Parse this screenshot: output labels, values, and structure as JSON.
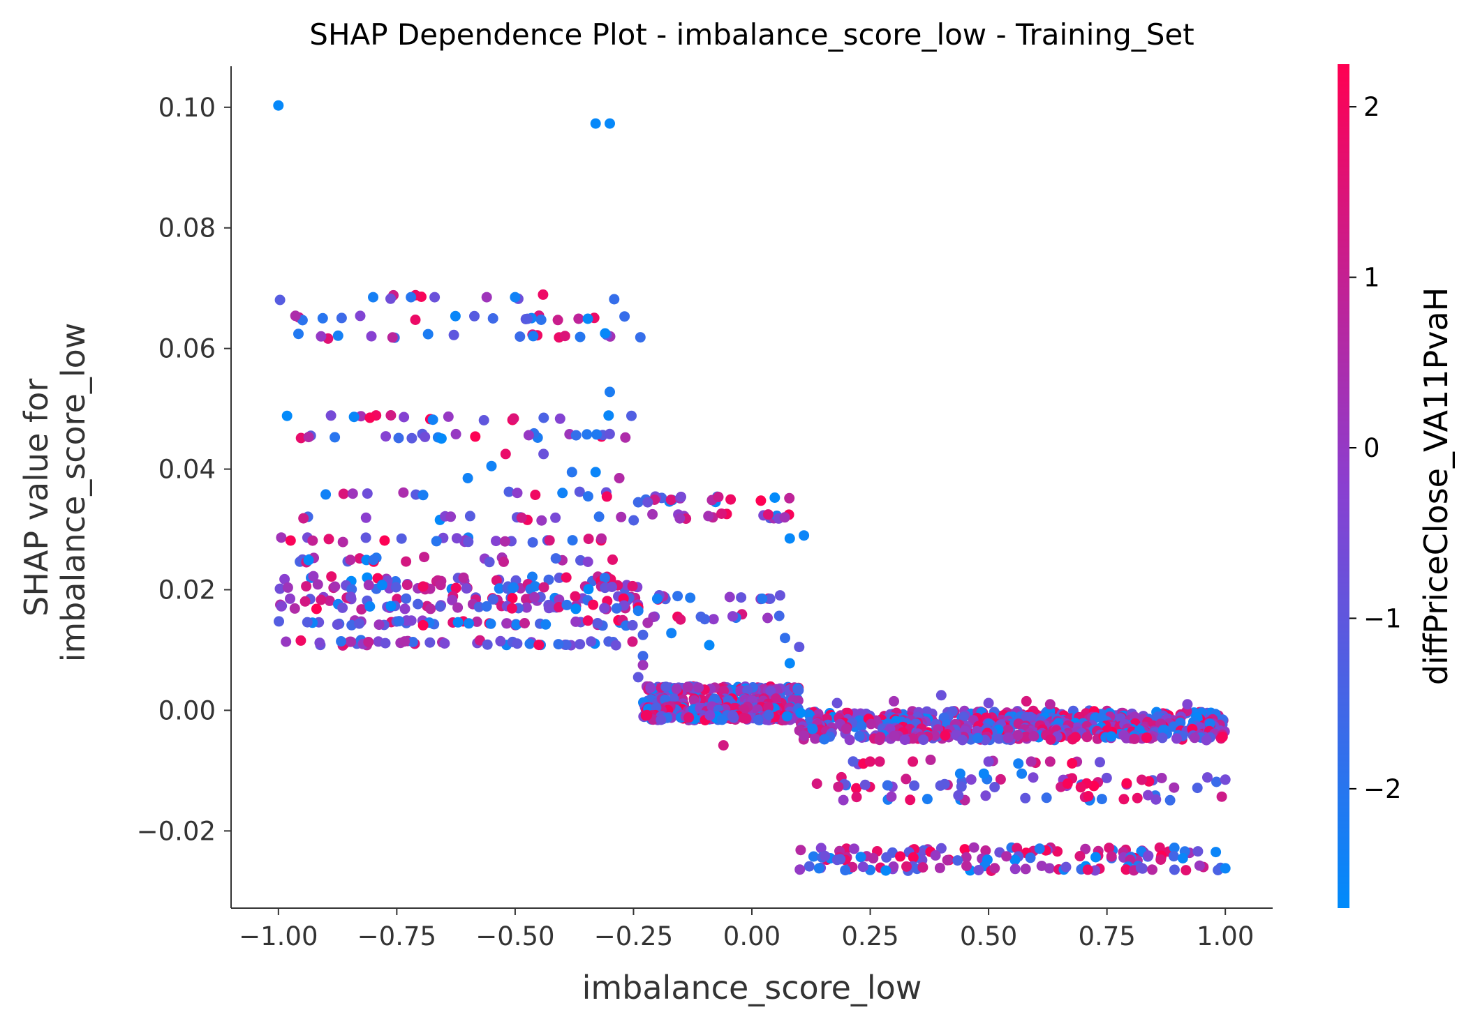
{
  "chart_data": {
    "type": "scatter",
    "title": "SHAP Dependence Plot - imbalance_score_low - Training_Set",
    "xlabel": "imbalance_score_low",
    "ylabel_lines": [
      "SHAP value for",
      "imbalance_score_low"
    ],
    "xlim": [
      -1.1,
      1.1
    ],
    "ylim": [
      -0.0328,
      0.1068
    ],
    "x_ticks": [
      -1.0,
      -0.75,
      -0.5,
      -0.25,
      0.0,
      0.25,
      0.5,
      0.75,
      1.0
    ],
    "x_tick_labels": [
      "−1.00",
      "−0.75",
      "−0.50",
      "−0.25",
      "0.00",
      "0.25",
      "0.50",
      "0.75",
      "1.00"
    ],
    "y_ticks": [
      -0.02,
      0.0,
      0.02,
      0.04,
      0.06,
      0.08,
      0.1
    ],
    "y_tick_labels": [
      "−0.02",
      "0.00",
      "0.02",
      "0.04",
      "0.06",
      "0.08",
      "0.10"
    ],
    "grid": false,
    "colorbar": {
      "label": "diffPriceClose_VA11PvaH",
      "range": [
        -2.7,
        2.25
      ],
      "ticks": [
        -2,
        -1,
        0,
        1,
        2
      ],
      "tick_labels": [
        "−2",
        "−1",
        "0",
        "1",
        "2"
      ],
      "color_low": "#008bfb",
      "color_mid": "#8a3fd0",
      "color_high": "#ff0052"
    },
    "bands": [
      {
        "x_range": [
          -1.0,
          -0.235
        ],
        "y_values": [
          0.0685,
          0.0651,
          0.062,
          0.0485,
          0.0455,
          0.0358,
          0.0318,
          0.0282,
          0.025,
          0.0218,
          0.0205,
          0.0185,
          0.0172,
          0.0145,
          0.0112
        ],
        "density": [
          8,
          20,
          18,
          18,
          24,
          14,
          16,
          26,
          26,
          30,
          46,
          40,
          46,
          48,
          46
        ]
      },
      {
        "x_range": [
          -0.23,
          0.1
        ],
        "y_values": [
          0.035,
          0.0322,
          0.0188,
          0.0155,
          0.0035,
          0.0015,
          0.0002,
          -0.0012
        ],
        "density": [
          18,
          16,
          14,
          12,
          110,
          100,
          110,
          100
        ]
      },
      {
        "x_range": [
          0.1,
          1.0
        ],
        "y_values": [
          -0.0005,
          -0.0015,
          -0.0025,
          -0.0035,
          -0.0045,
          -0.0085,
          -0.0115,
          -0.0125,
          -0.0145,
          -0.0232,
          -0.0245,
          -0.0262
        ],
        "density": [
          120,
          130,
          130,
          130,
          120,
          10,
          18,
          26,
          24,
          46,
          46,
          50
        ]
      }
    ],
    "points": [
      {
        "x": -1.0,
        "y": 0.1003,
        "c": -2.6
      },
      {
        "x": -0.33,
        "y": 0.0973,
        "c": -2.6
      },
      {
        "x": -0.3,
        "y": 0.0973,
        "c": -2.6
      },
      {
        "x": -0.3,
        "y": 0.0528,
        "c": -2.2
      },
      {
        "x": -0.31,
        "y": 0.0625,
        "c": -2.6
      },
      {
        "x": -0.8,
        "y": 0.0685,
        "c": -2.3
      },
      {
        "x": -0.72,
        "y": 0.0685,
        "c": -2.0
      },
      {
        "x": -0.67,
        "y": 0.0685,
        "c": -0.8
      },
      {
        "x": -0.5,
        "y": 0.0685,
        "c": -2.4
      },
      {
        "x": -0.56,
        "y": 0.0685,
        "c": 0.2
      },
      {
        "x": -0.91,
        "y": 0.062,
        "c": 0.0
      },
      {
        "x": -0.52,
        "y": 0.0425,
        "c": 1.8
      },
      {
        "x": -0.38,
        "y": 0.0395,
        "c": -2.0
      },
      {
        "x": -0.33,
        "y": 0.0395,
        "c": -2.5
      },
      {
        "x": -0.28,
        "y": 0.0385,
        "c": 0.6
      },
      {
        "x": -0.9,
        "y": 0.0358,
        "c": -2.4
      },
      {
        "x": -0.6,
        "y": 0.0385,
        "c": -2.4
      },
      {
        "x": -0.55,
        "y": 0.0405,
        "c": -2.4
      },
      {
        "x": -0.44,
        "y": 0.0425,
        "c": -0.8
      },
      {
        "x": -0.24,
        "y": 0.0345,
        "c": -1.6
      },
      {
        "x": -0.22,
        "y": 0.0345,
        "c": -0.8
      },
      {
        "x": -0.21,
        "y": 0.0325,
        "c": 0.3
      },
      {
        "x": -0.2,
        "y": 0.0185,
        "c": -2.4
      },
      {
        "x": -0.17,
        "y": 0.0128,
        "c": -2.4
      },
      {
        "x": -0.09,
        "y": 0.0108,
        "c": -2.6
      },
      {
        "x": -0.23,
        "y": 0.009,
        "c": -1.6
      },
      {
        "x": -0.23,
        "y": 0.0075,
        "c": 0.2
      },
      {
        "x": -0.24,
        "y": 0.0055,
        "c": -1.0
      },
      {
        "x": -0.23,
        "y": 0.0125,
        "c": -1.4
      },
      {
        "x": -0.24,
        "y": 0.0165,
        "c": -2.2
      },
      {
        "x": -0.22,
        "y": 0.0145,
        "c": 0.4
      },
      {
        "x": -0.06,
        "y": -0.0058,
        "c": 1.3
      },
      {
        "x": 0.08,
        "y": 0.0285,
        "c": -2.6
      },
      {
        "x": 0.11,
        "y": 0.029,
        "c": -2.5
      },
      {
        "x": 0.08,
        "y": 0.0078,
        "c": -2.6
      },
      {
        "x": 0.07,
        "y": 0.012,
        "c": -1.8
      },
      {
        "x": 0.1,
        "y": 0.0105,
        "c": -1.0
      },
      {
        "x": 0.18,
        "y": 0.0012,
        "c": -0.8
      },
      {
        "x": 0.4,
        "y": 0.0025,
        "c": -0.8
      },
      {
        "x": 0.3,
        "y": 0.0015,
        "c": 0.3
      },
      {
        "x": 0.5,
        "y": 0.0012,
        "c": -0.6
      },
      {
        "x": 0.58,
        "y": 0.0015,
        "c": 1.4
      },
      {
        "x": 0.92,
        "y": 0.001,
        "c": -0.4
      },
      {
        "x": 0.63,
        "y": 0.001,
        "c": 0.7
      },
      {
        "x": 0.25,
        "y": -0.0085,
        "c": 1.7
      },
      {
        "x": 0.27,
        "y": -0.0085,
        "c": 1.5
      },
      {
        "x": 0.34,
        "y": -0.0085,
        "c": 1.6
      },
      {
        "x": 0.5,
        "y": -0.0085,
        "c": -0.5
      },
      {
        "x": 0.59,
        "y": -0.0085,
        "c": 0.5
      },
      {
        "x": 0.63,
        "y": -0.0085,
        "c": 1.0
      },
      {
        "x": 0.44,
        "y": -0.0105,
        "c": -2.4
      },
      {
        "x": 0.49,
        "y": -0.0105,
        "c": -2.5
      },
      {
        "x": 0.57,
        "y": -0.0105,
        "c": -2.3
      },
      {
        "x": 1.0,
        "y": -0.0115,
        "c": -0.6
      },
      {
        "x": 0.98,
        "y": -0.0235,
        "c": -2.5
      },
      {
        "x": 1.0,
        "y": -0.0262,
        "c": -2.5
      }
    ]
  }
}
